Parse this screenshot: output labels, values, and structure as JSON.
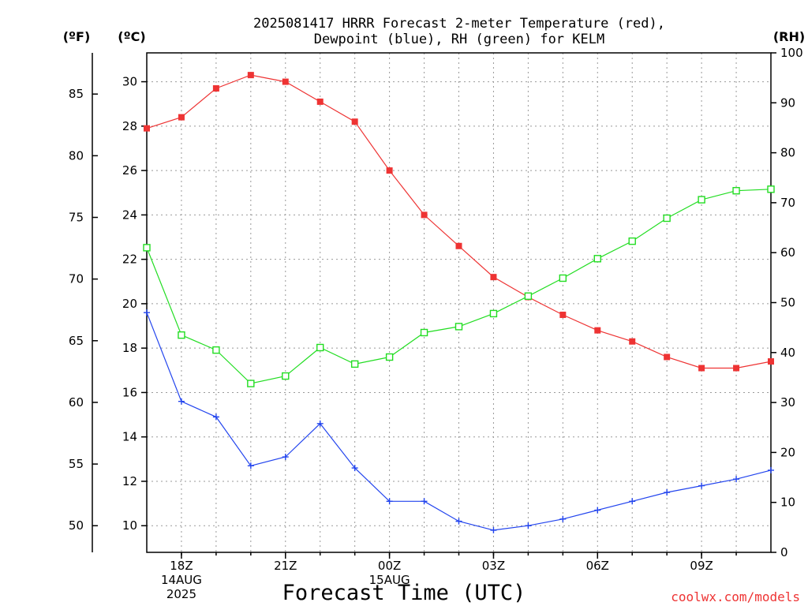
{
  "chart_data": {
    "type": "line",
    "title_lines": [
      "2025081417 HRRR Forecast 2-meter Temperature (red),",
      "Dewpoint (blue), RH (green) for KELM"
    ],
    "xlabel": "Forecast Time (UTC)",
    "unit_labels": {
      "fahrenheit": "(ºF)",
      "celsius": "(ºC)",
      "rh": "(RH)"
    },
    "credit": "coolwx.com/models",
    "x_ticks": [
      {
        "hour": 1,
        "labels": [
          "18Z",
          "14AUG",
          "2025"
        ]
      },
      {
        "hour": 4,
        "labels": [
          "21Z"
        ]
      },
      {
        "hour": 7,
        "labels": [
          "00Z",
          "15AUG"
        ]
      },
      {
        "hour": 10,
        "labels": [
          "03Z"
        ]
      },
      {
        "hour": 13,
        "labels": [
          "06Z"
        ]
      },
      {
        "hour": 16,
        "labels": [
          "09Z"
        ]
      }
    ],
    "x": [
      "2025-08-14 17Z",
      "2025-08-14 18Z",
      "2025-08-14 19Z",
      "2025-08-14 20Z",
      "2025-08-14 21Z",
      "2025-08-14 22Z",
      "2025-08-14 23Z",
      "2025-08-15 00Z",
      "2025-08-15 01Z",
      "2025-08-15 02Z",
      "2025-08-15 03Z",
      "2025-08-15 04Z",
      "2025-08-15 05Z",
      "2025-08-15 06Z",
      "2025-08-15 07Z",
      "2025-08-15 08Z",
      "2025-08-15 09Z",
      "2025-08-15 10Z",
      "2025-08-15 11Z"
    ],
    "celsius_axis": {
      "range": [
        8.8,
        31.3
      ],
      "ticks": [
        10,
        12,
        14,
        16,
        18,
        20,
        22,
        24,
        26,
        28,
        30
      ]
    },
    "fahrenheit_axis": {
      "range": [
        47.84,
        88.34
      ],
      "ticks": [
        50,
        55,
        60,
        65,
        70,
        75,
        80,
        85
      ]
    },
    "rh_axis": {
      "range": [
        0,
        100
      ],
      "ticks": [
        0,
        10,
        20,
        30,
        40,
        50,
        60,
        70,
        80,
        90,
        100
      ]
    },
    "series": [
      {
        "color": "#ee3333",
        "marker": "filled-square",
        "axis": "celsius",
        "values": [
          27.9,
          28.4,
          29.7,
          30.3,
          30.0,
          29.1,
          28.2,
          26.0,
          24.0,
          22.6,
          21.2,
          20.3,
          19.5,
          18.8,
          18.3,
          17.6,
          17.1,
          17.1,
          17.4
        ]
      },
      {
        "color": "#2244ee",
        "marker": "plus",
        "axis": "celsius",
        "values": [
          19.6,
          15.6,
          14.9,
          12.7,
          13.1,
          14.6,
          12.6,
          11.1,
          11.1,
          10.2,
          9.8,
          10.0,
          10.3,
          10.7,
          11.1,
          11.5,
          11.8,
          12.1,
          12.5
        ]
      },
      {
        "color": "#22dd22",
        "marker": "open-square",
        "axis": "rh",
        "values": [
          61.0,
          43.5,
          40.5,
          33.8,
          35.3,
          41.0,
          37.7,
          39.1,
          44.0,
          45.2,
          47.8,
          51.3,
          54.9,
          58.8,
          62.3,
          66.9,
          70.6,
          72.4,
          72.7
        ]
      }
    ]
  }
}
